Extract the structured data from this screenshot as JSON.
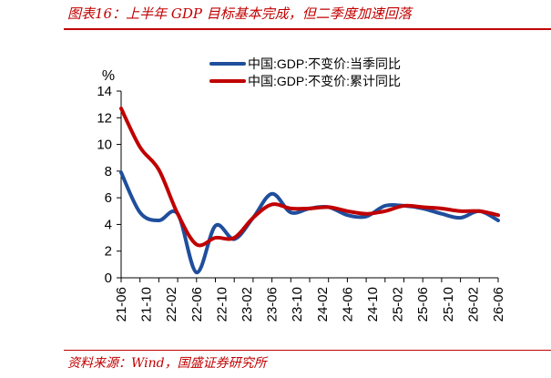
{
  "header": {
    "title": "图表16：上半年 GDP 目标基本完成，但二季度加速回落"
  },
  "footer": {
    "source": "资料来源：Wind，国盛证券研究所"
  },
  "chart_data": {
    "type": "line",
    "title": "",
    "xlabel": "",
    "ylabel": "%",
    "ylim": [
      0,
      14
    ],
    "yticks": [
      "0",
      "2",
      "4",
      "6",
      "8",
      "10",
      "12",
      "14"
    ],
    "x": [
      "21-06",
      "21-09",
      "21-12",
      "22-03",
      "22-06",
      "22-09",
      "22-12",
      "23-03",
      "23-06",
      "23-09",
      "23-12",
      "24-03",
      "24-06",
      "24-09",
      "24-12",
      "25-03",
      "25-06",
      "25-09",
      "25-12",
      "26-03",
      "26-06"
    ],
    "xticks": [
      "21-06",
      "21-10",
      "22-02",
      "22-06",
      "22-10",
      "23-02",
      "23-06",
      "23-10",
      "24-02",
      "24-06",
      "24-10",
      "25-02",
      "25-06",
      "25-10",
      "26-02",
      "26-06"
    ],
    "legend_position": "top-right",
    "grid": false,
    "series": [
      {
        "name": "中国:GDP:不变价:当季同比",
        "color": "#1f4e9c",
        "values": [
          7.9,
          4.9,
          4.3,
          4.8,
          0.4,
          3.9,
          2.9,
          4.5,
          6.3,
          4.9,
          5.2,
          5.3,
          4.7,
          4.6,
          5.4,
          5.4,
          5.2,
          4.8,
          4.5,
          5.0,
          4.3
        ]
      },
      {
        "name": "中国:GDP:不变价:累计同比",
        "color": "#c00000",
        "values": [
          12.7,
          9.8,
          8.1,
          4.8,
          2.5,
          3.0,
          3.0,
          4.5,
          5.5,
          5.2,
          5.2,
          5.3,
          5.0,
          4.8,
          5.0,
          5.4,
          5.3,
          5.2,
          5.0,
          5.0,
          4.7
        ]
      }
    ]
  }
}
